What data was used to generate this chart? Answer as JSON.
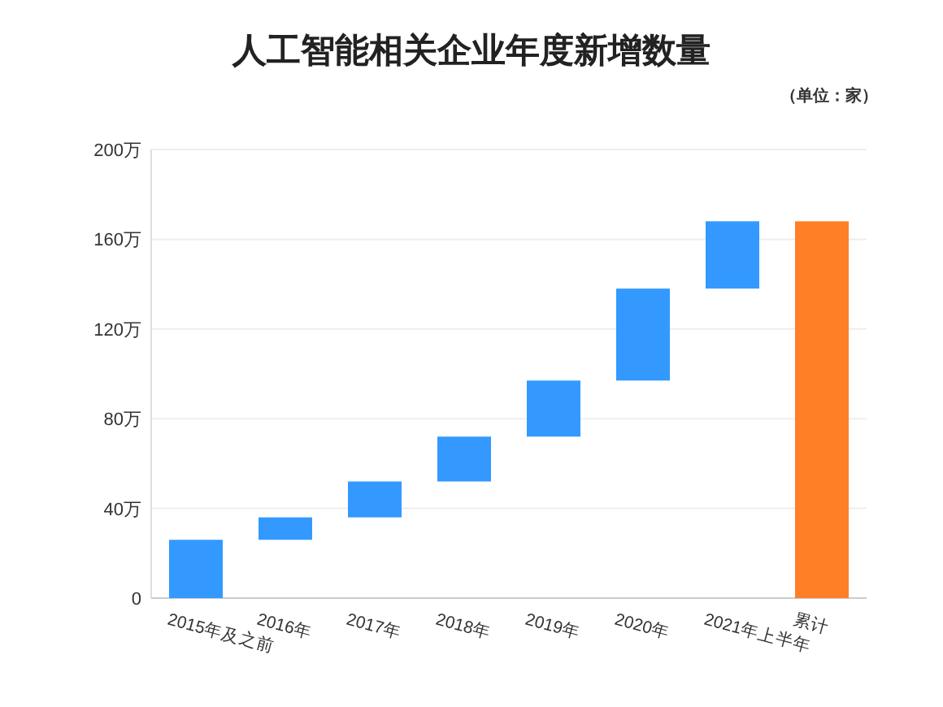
{
  "chart_data": {
    "type": "bar",
    "title": "人工智能相关企业年度新增数量",
    "annotations": [
      "（单位：家）"
    ],
    "categories": [
      "2015年及之前",
      "2016年",
      "2017年",
      "2018年",
      "2019年",
      "2020年",
      "2021年上半年",
      "累计"
    ],
    "values": [
      26,
      10,
      16,
      20,
      25,
      41,
      30,
      168
    ],
    "base": [
      0,
      26,
      36,
      52,
      72,
      97,
      138,
      0
    ],
    "colors": [
      "#3399ff",
      "#3399ff",
      "#3399ff",
      "#3399ff",
      "#3399ff",
      "#3399ff",
      "#3399ff",
      "#ff7f27"
    ],
    "ylim": [
      0,
      200
    ],
    "yticks": [
      0,
      {
        "value": 40,
        "label": "40万"
      },
      {
        "value": 80,
        "label": "80万"
      },
      {
        "value": 120,
        "label": "120万"
      },
      {
        "value": 160,
        "label": "160万"
      },
      {
        "value": 200,
        "label": "200万"
      }
    ],
    "grid": "y"
  }
}
